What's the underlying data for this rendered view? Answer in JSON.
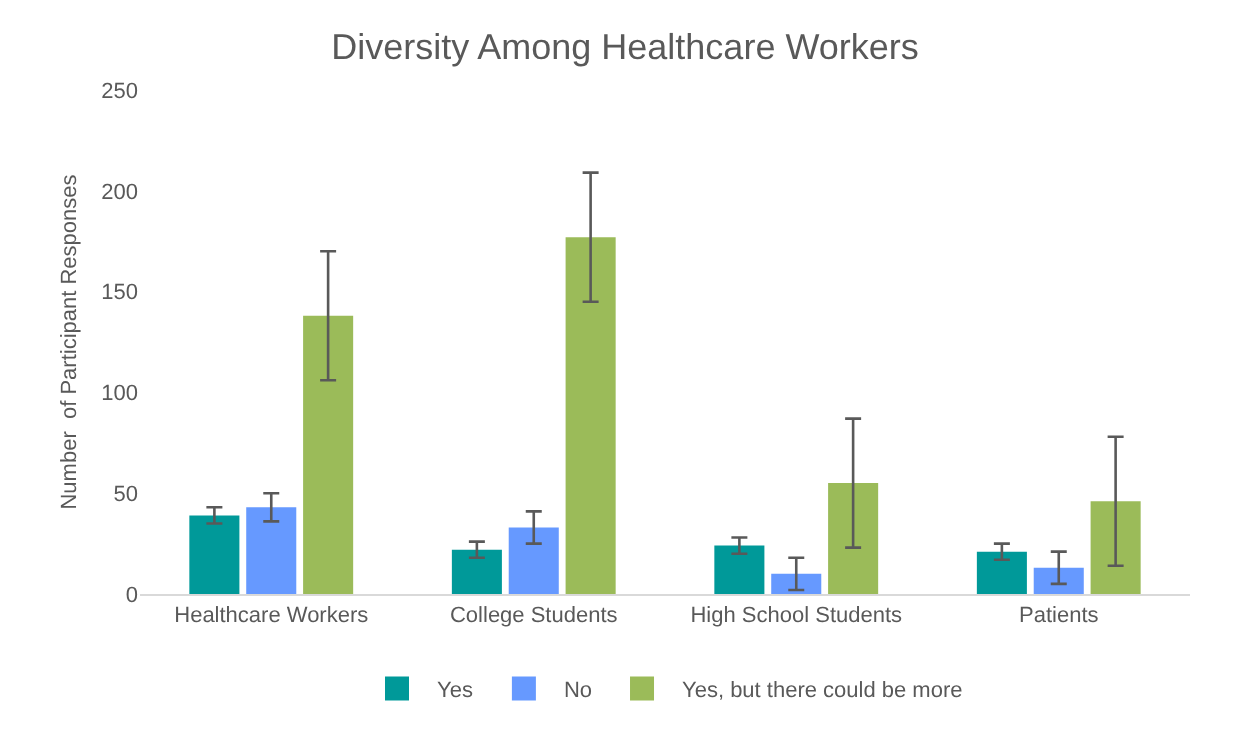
{
  "chart_data": {
    "type": "bar",
    "title": "Diversity Among Healthcare Workers",
    "ylabel": "Number  of Participant Responses",
    "categories": [
      "Healthcare Workers",
      "College Students",
      "High School Students",
      "Patients"
    ],
    "series": [
      {
        "name": "Yes",
        "color": "#009999",
        "values": [
          39,
          22,
          24,
          21
        ],
        "errors": [
          4,
          4,
          4,
          4
        ]
      },
      {
        "name": "No",
        "color": "#6699ff",
        "values": [
          43,
          33,
          10,
          13
        ],
        "errors": [
          7,
          8,
          8,
          8
        ]
      },
      {
        "name": "Yes, but there could be more",
        "color": "#9bbb59",
        "values": [
          138,
          177,
          55,
          46
        ],
        "errors": [
          32,
          32,
          32,
          32
        ]
      }
    ],
    "ylim": [
      0,
      250
    ],
    "yticks": [
      0,
      50,
      100,
      150,
      200,
      250
    ],
    "grid": false,
    "legend": "bottom"
  }
}
